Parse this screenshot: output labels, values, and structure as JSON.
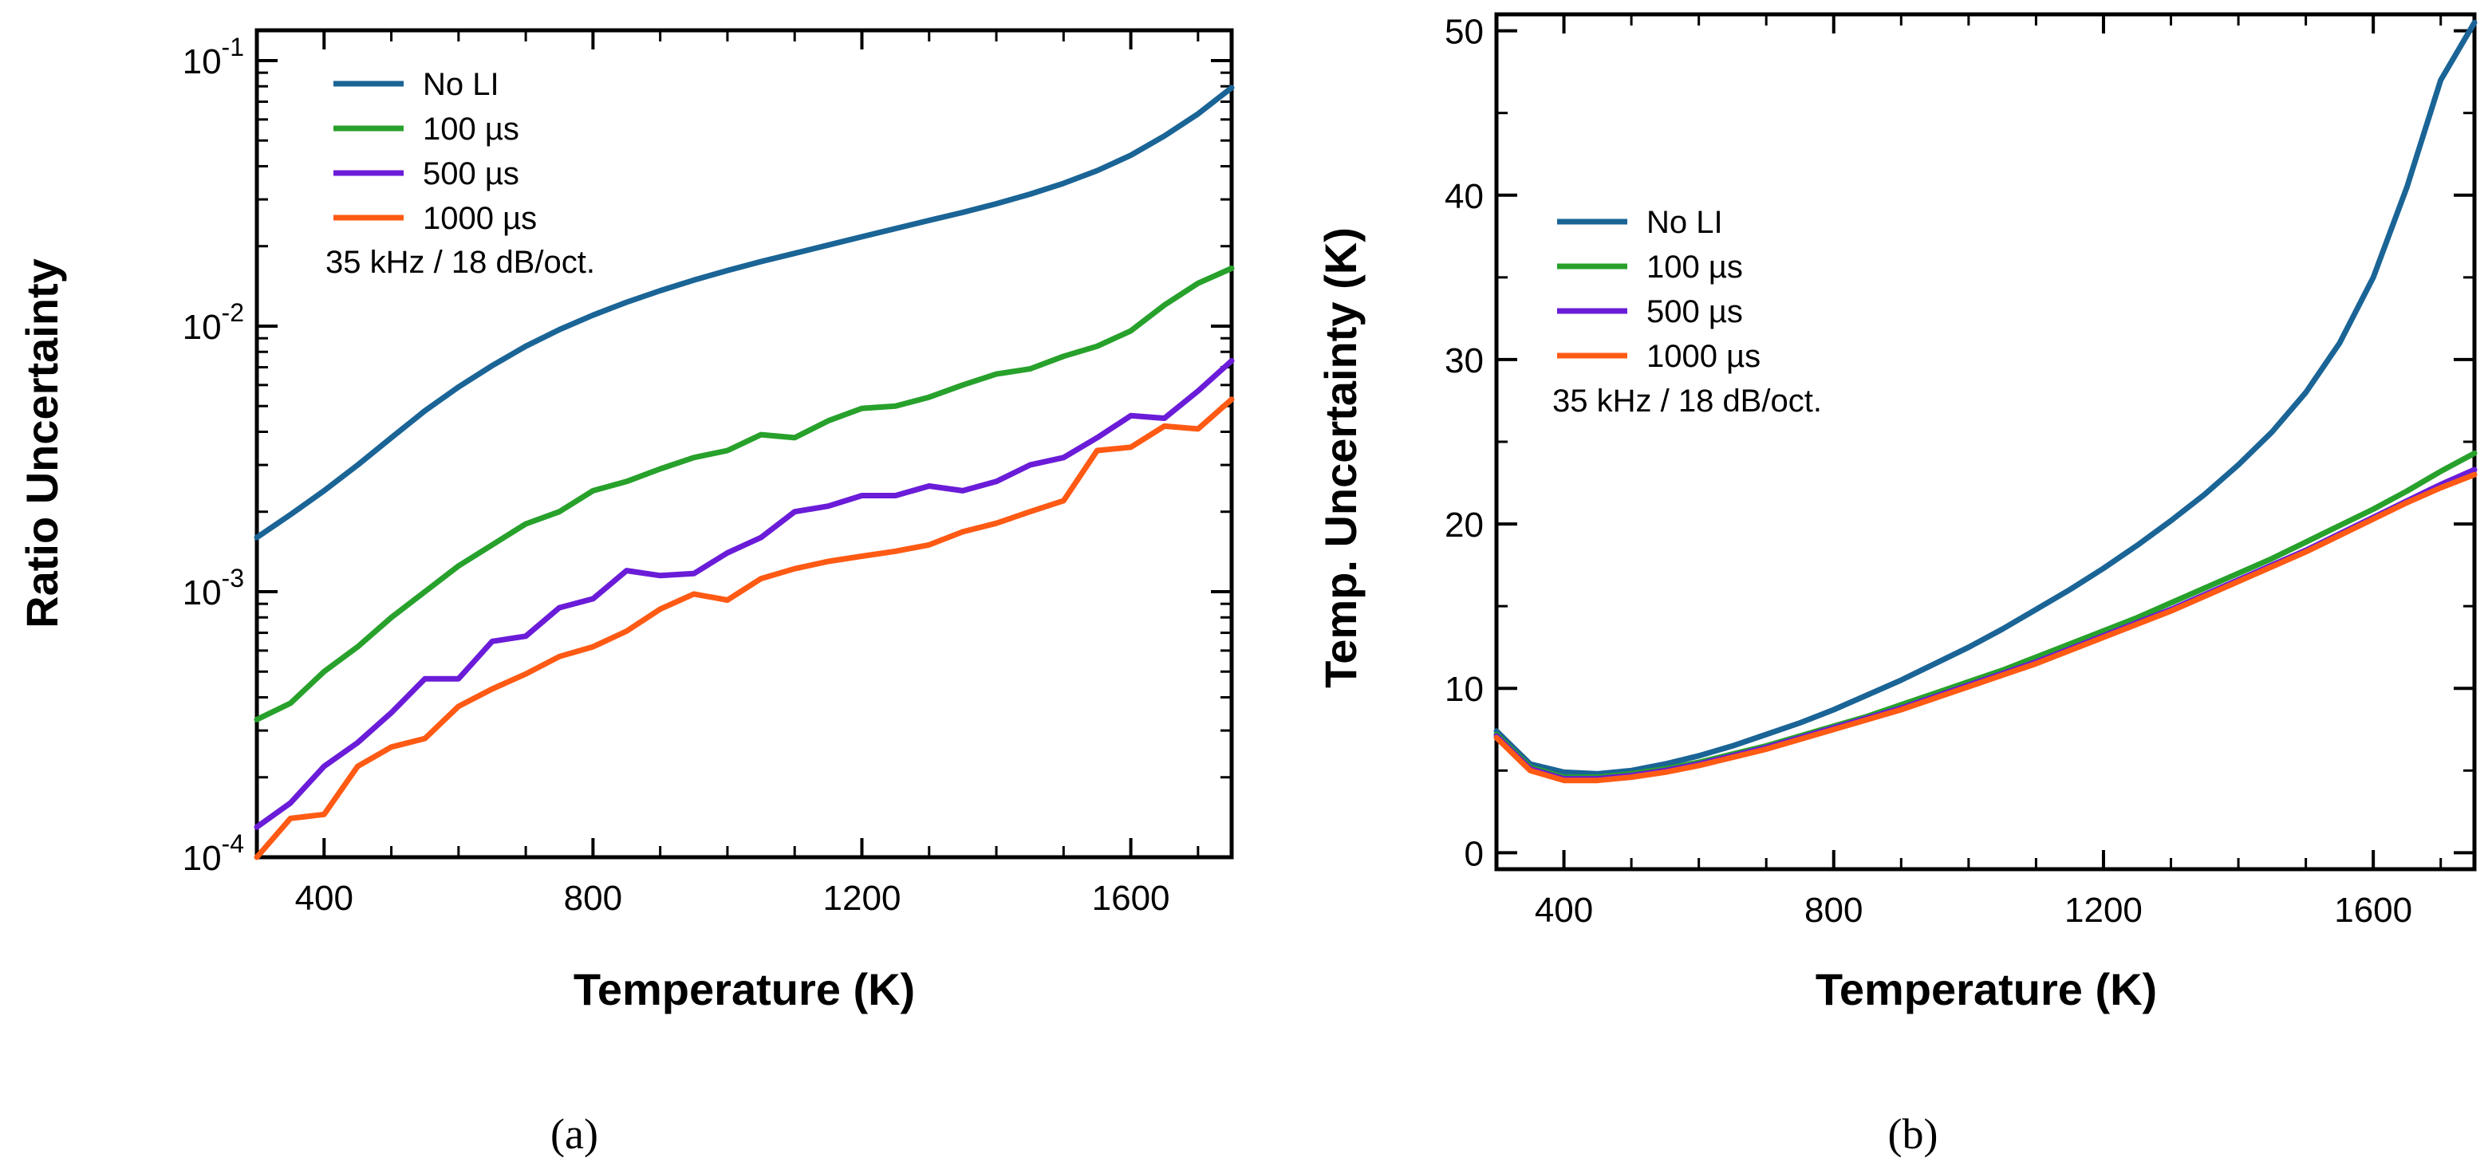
{
  "colors": {
    "no_li": "#1a6496",
    "us100": "#27a12b",
    "us500": "#6a1cd8",
    "us1000": "#ff5a14"
  },
  "chart_data": [
    {
      "id": "a",
      "panel_label": "(a)",
      "type": "line",
      "yscale": "log",
      "xlabel": "Temperature (K)",
      "ylabel": "Ratio Uncertainty",
      "xlim": [
        300,
        1750
      ],
      "ylim": [
        0.0001,
        0.13
      ],
      "xticks": [
        400,
        800,
        1200,
        1600
      ],
      "xtick_labels": [
        "400",
        "800",
        "1200",
        "1600"
      ],
      "yticks": [
        0.0001,
        0.001,
        0.01,
        0.1
      ],
      "ytick_labels": [
        {
          "base": "10",
          "exp": "-4"
        },
        {
          "base": "10",
          "exp": "-3"
        },
        {
          "base": "10",
          "exp": "-2"
        },
        {
          "base": "10",
          "exp": "-1"
        }
      ],
      "legend_position": "top-left",
      "annotation": "35 kHz / 18 dB/oct.",
      "x": [
        300,
        350,
        400,
        450,
        500,
        550,
        600,
        650,
        700,
        750,
        800,
        850,
        900,
        950,
        1000,
        1050,
        1100,
        1150,
        1200,
        1250,
        1300,
        1350,
        1400,
        1450,
        1500,
        1550,
        1600,
        1650,
        1700,
        1750
      ],
      "series": [
        {
          "name": "No LI",
          "color_key": "no_li",
          "values": [
            0.0016,
            0.00195,
            0.0024,
            0.003,
            0.0038,
            0.0048,
            0.0059,
            0.0071,
            0.0084,
            0.0097,
            0.011,
            0.0123,
            0.0136,
            0.0149,
            0.0162,
            0.0175,
            0.0188,
            0.0202,
            0.0217,
            0.0233,
            0.025,
            0.0268,
            0.0289,
            0.0314,
            0.0345,
            0.0385,
            0.044,
            0.052,
            0.063,
            0.079
          ]
        },
        {
          "name": "100  µs",
          "color_key": "us100",
          "values": [
            0.00033,
            0.00038,
            0.0005,
            0.00062,
            0.0008,
            0.001,
            0.00125,
            0.0015,
            0.0018,
            0.002,
            0.0024,
            0.0026,
            0.0029,
            0.0032,
            0.0034,
            0.0039,
            0.0038,
            0.0044,
            0.0049,
            0.005,
            0.0054,
            0.006,
            0.0066,
            0.0069,
            0.0077,
            0.0084,
            0.0096,
            0.012,
            0.0145,
            0.0165
          ]
        },
        {
          "name": "500  µs",
          "color_key": "us500",
          "values": [
            0.00013,
            0.00016,
            0.00022,
            0.00027,
            0.00035,
            0.00047,
            0.00047,
            0.00065,
            0.00068,
            0.00087,
            0.00094,
            0.0012,
            0.00115,
            0.00117,
            0.0014,
            0.0016,
            0.002,
            0.0021,
            0.0023,
            0.0023,
            0.0025,
            0.0024,
            0.0026,
            0.003,
            0.0032,
            0.0038,
            0.0046,
            0.0045,
            0.0057,
            0.0074
          ]
        },
        {
          "name": "1000 µs",
          "color_key": "us1000",
          "values": [
            0.0001,
            0.00014,
            0.000145,
            0.00022,
            0.00026,
            0.00028,
            0.00037,
            0.00043,
            0.00049,
            0.00057,
            0.00062,
            0.00071,
            0.00086,
            0.00098,
            0.00093,
            0.00112,
            0.00122,
            0.0013,
            0.00136,
            0.00142,
            0.0015,
            0.00168,
            0.00181,
            0.002,
            0.0022,
            0.0034,
            0.0035,
            0.0042,
            0.0041,
            0.0053
          ]
        }
      ]
    },
    {
      "id": "b",
      "panel_label": "(b)",
      "type": "line",
      "yscale": "linear",
      "xlabel": "Temperature (K)",
      "ylabel": "Temp. Uncertainty (K)",
      "xlim": [
        300,
        1750
      ],
      "ylim": [
        -1,
        51
      ],
      "xticks": [
        400,
        800,
        1200,
        1600
      ],
      "xtick_labels": [
        "400",
        "800",
        "1200",
        "1600"
      ],
      "yticks": [
        0,
        10,
        20,
        30,
        40,
        50
      ],
      "ytick_labels": [
        "0",
        "10",
        "20",
        "30",
        "40",
        "50"
      ],
      "legend_position": "top-left",
      "annotation": "35 kHz / 18 dB/oct.",
      "x": [
        300,
        350,
        400,
        450,
        500,
        550,
        600,
        650,
        700,
        750,
        800,
        850,
        900,
        950,
        1000,
        1050,
        1100,
        1150,
        1200,
        1250,
        1300,
        1350,
        1400,
        1450,
        1500,
        1550,
        1600,
        1650,
        1700,
        1750
      ],
      "series": [
        {
          "name": "No LI",
          "color_key": "no_li",
          "values": [
            7.4,
            5.4,
            4.9,
            4.8,
            5.0,
            5.4,
            5.9,
            6.5,
            7.2,
            7.9,
            8.7,
            9.6,
            10.5,
            11.5,
            12.5,
            13.6,
            14.8,
            16.0,
            17.3,
            18.7,
            20.2,
            21.8,
            23.6,
            25.6,
            28.0,
            31.0,
            35.0,
            40.5,
            47.0,
            50.5
          ]
        },
        {
          "name": "100  µs",
          "color_key": "us100",
          "values": [
            7.2,
            5.2,
            4.6,
            4.6,
            4.8,
            5.1,
            5.5,
            6.0,
            6.5,
            7.1,
            7.7,
            8.3,
            9.0,
            9.7,
            10.4,
            11.1,
            11.9,
            12.7,
            13.5,
            14.3,
            15.2,
            16.1,
            17.0,
            17.9,
            18.9,
            19.9,
            20.9,
            22.0,
            23.2,
            24.3
          ]
        },
        {
          "name": "500  µs",
          "color_key": "us500",
          "values": [
            7.1,
            5.1,
            4.5,
            4.5,
            4.7,
            5.0,
            5.4,
            5.9,
            6.4,
            7.0,
            7.6,
            8.2,
            8.8,
            9.5,
            10.2,
            10.9,
            11.6,
            12.4,
            13.2,
            14.0,
            14.8,
            15.7,
            16.6,
            17.5,
            18.4,
            19.4,
            20.4,
            21.4,
            22.4,
            23.3
          ]
        },
        {
          "name": "1000 µs",
          "color_key": "us1000",
          "values": [
            7.0,
            5.0,
            4.4,
            4.4,
            4.6,
            4.9,
            5.3,
            5.8,
            6.3,
            6.9,
            7.5,
            8.1,
            8.7,
            9.4,
            10.1,
            10.8,
            11.5,
            12.3,
            13.1,
            13.9,
            14.7,
            15.6,
            16.5,
            17.4,
            18.3,
            19.3,
            20.3,
            21.3,
            22.2,
            23.0
          ]
        }
      ]
    }
  ]
}
